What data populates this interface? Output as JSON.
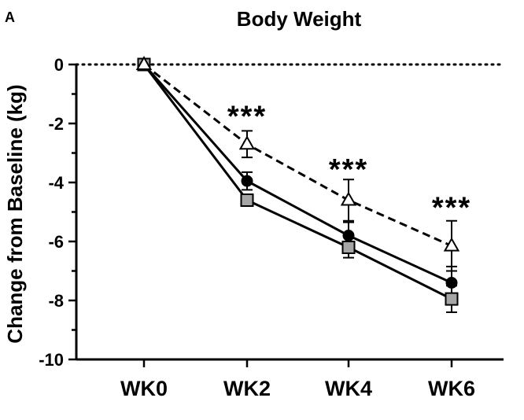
{
  "panel_label": "A",
  "chart_data": {
    "type": "line",
    "title": "Body Weight",
    "xlabel": "",
    "ylabel": "Change from Baseline (kg)",
    "categories": [
      "WK0",
      "WK2",
      "WK4",
      "WK6"
    ],
    "ylim": [
      -10,
      0
    ],
    "yticks": [
      0,
      -2,
      -4,
      -6,
      -8,
      -10
    ],
    "ytick_labels": [
      "0",
      "-2",
      "-4",
      "-6",
      "-8",
      "-10"
    ],
    "reference_line": {
      "y": 0,
      "style": "dotted"
    },
    "series": [
      {
        "name": "circle",
        "marker": "circle",
        "line_style": "solid",
        "color": "#000000",
        "values": [
          0,
          -3.95,
          -5.8,
          -7.4
        ],
        "errors": [
          0,
          0.3,
          0.45,
          0.55
        ]
      },
      {
        "name": "square",
        "marker": "square",
        "line_style": "solid",
        "color": "#000000",
        "fill": "#a6a6a6",
        "values": [
          0,
          -4.6,
          -6.2,
          -7.95
        ],
        "errors": [
          0,
          0.15,
          0.35,
          0.45
        ]
      },
      {
        "name": "triangle",
        "marker": "triangle",
        "line_style": "dashed",
        "color": "#000000",
        "fill": "#ffffff",
        "values": [
          0,
          -2.7,
          -4.6,
          -6.15
        ],
        "errors": [
          0,
          0.45,
          0.7,
          0.85
        ]
      }
    ],
    "annotations": [
      {
        "category": "WK2",
        "text": "***",
        "y": -1.5
      },
      {
        "category": "WK4",
        "text": "***",
        "y": -3.3
      },
      {
        "category": "WK6",
        "text": "***",
        "y": -4.6
      }
    ]
  }
}
